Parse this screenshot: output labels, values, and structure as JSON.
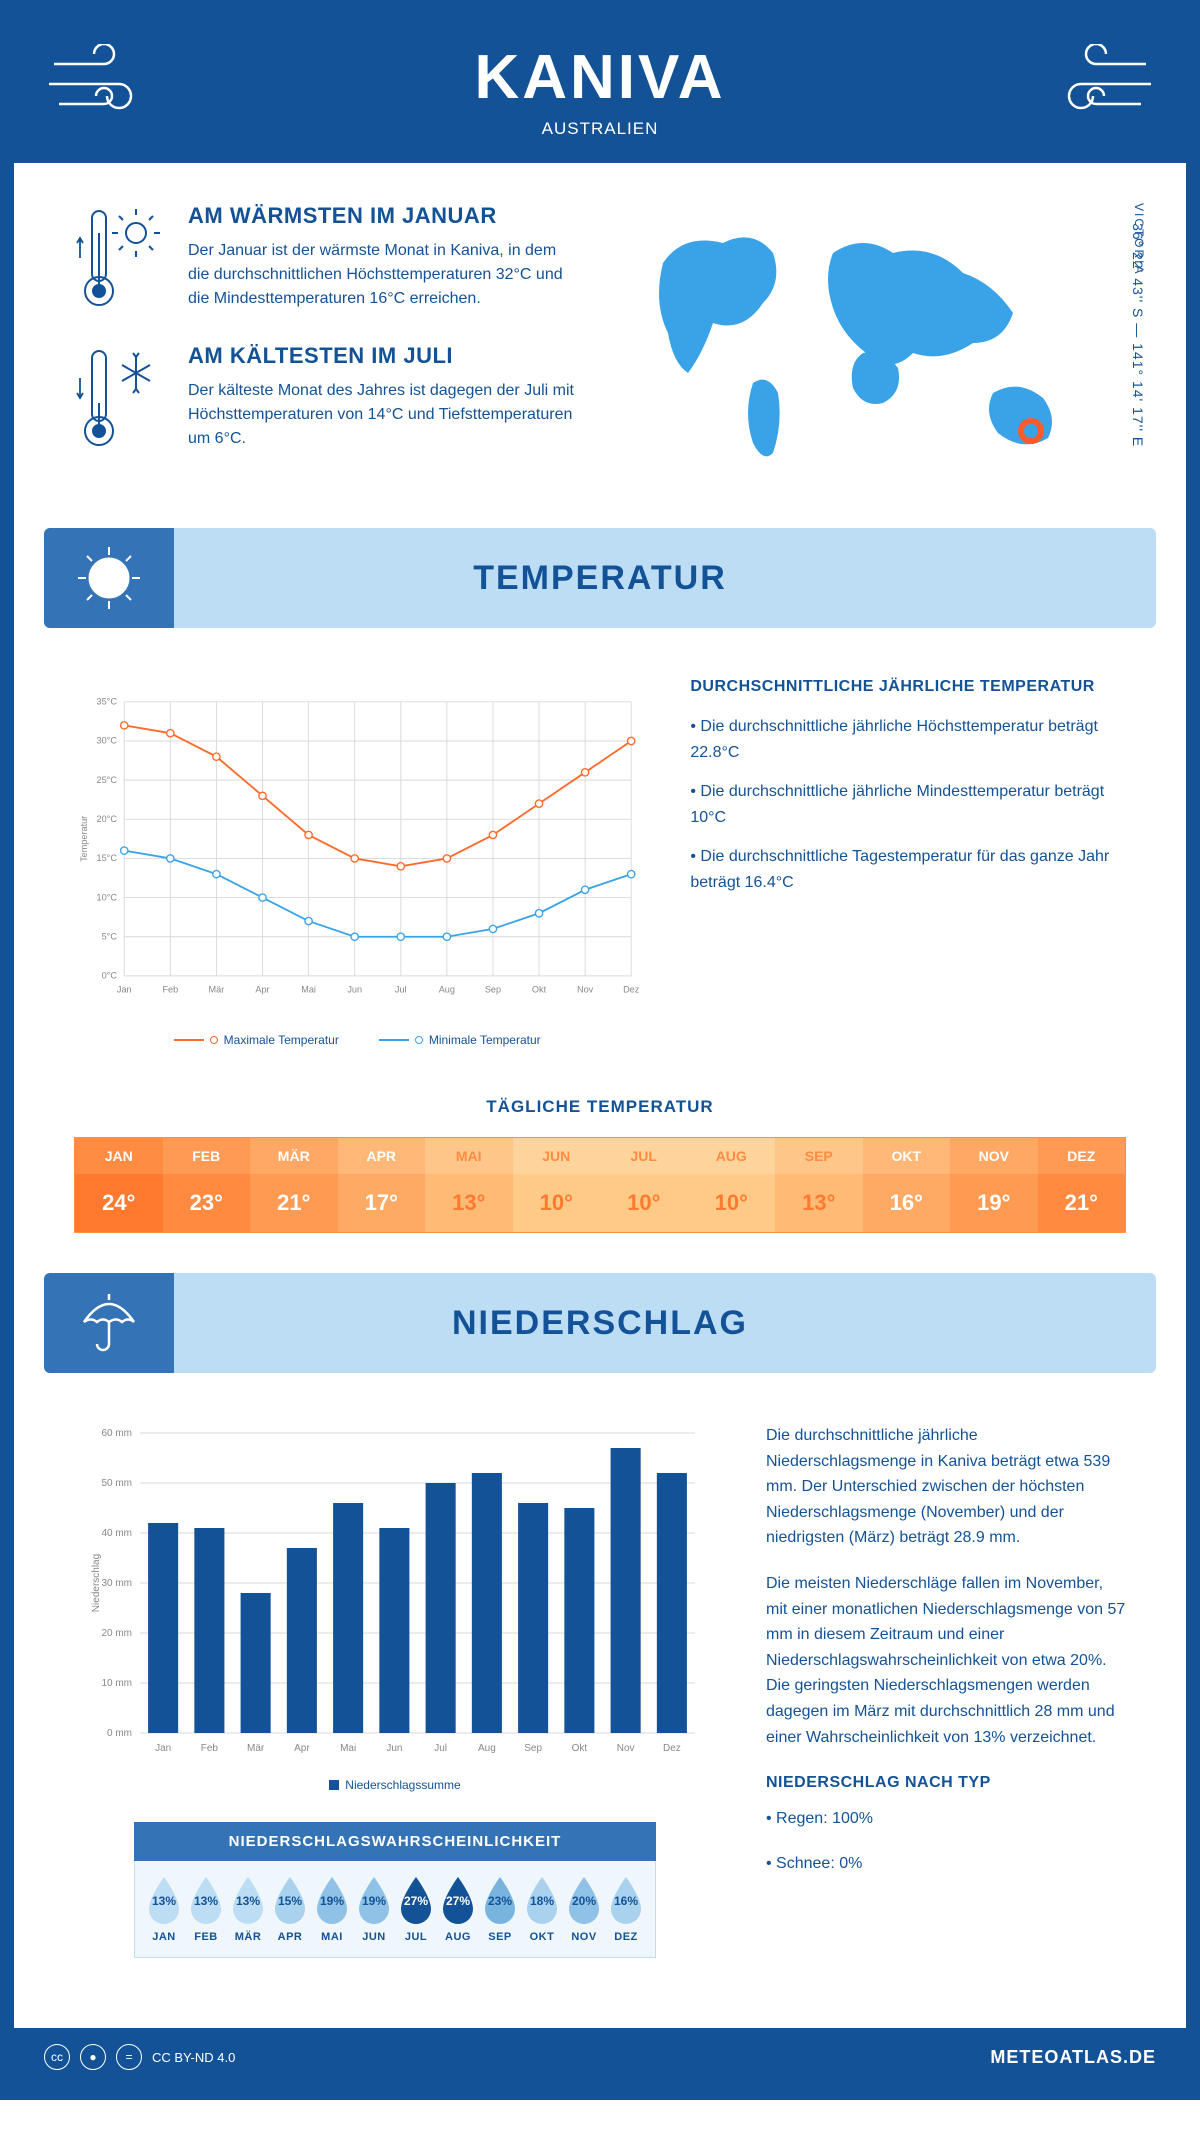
{
  "header": {
    "title": "KANIVA",
    "subtitle": "AUSTRALIEN"
  },
  "coords": "36° 22' 43'' S — 141° 14' 17'' E",
  "region": "VICTORIA",
  "fact1": {
    "title": "AM WÄRMSTEN IM JANUAR",
    "text": "Der Januar ist der wärmste Monat in Kaniva, in dem die durchschnittlichen Höchsttemperaturen 32°C und die Mindesttemperaturen 16°C erreichen."
  },
  "fact2": {
    "title": "AM KÄLTESTEN IM JULI",
    "text": "Der kälteste Monat des Jahres ist dagegen der Juli mit Höchsttemperaturen von 14°C und Tiefsttemperaturen um 6°C."
  },
  "section_temp": "TEMPERATUR",
  "section_precip": "NIEDERSCHLAG",
  "temp_chart": {
    "type": "line",
    "months": [
      "Jan",
      "Feb",
      "Mär",
      "Apr",
      "Mai",
      "Jun",
      "Jul",
      "Aug",
      "Sep",
      "Okt",
      "Nov",
      "Dez"
    ],
    "max_series": {
      "label": "Maximale Temperatur",
      "color": "#ff6a2b",
      "values": [
        32,
        31,
        28,
        23,
        18,
        15,
        14,
        15,
        18,
        22,
        26,
        30
      ]
    },
    "min_series": {
      "label": "Minimale Temperatur",
      "color": "#3aa3e8",
      "values": [
        16,
        15,
        13,
        10,
        7,
        5,
        5,
        5,
        6,
        8,
        11,
        13
      ]
    },
    "ylabel": "Temperatur",
    "ylim": [
      0,
      35
    ],
    "ytick_step": 5,
    "yunit": "°C",
    "grid_color": "#d9d9d9",
    "axis_color": "#999",
    "label_fontsize": 10,
    "tick_fontsize": 10,
    "marker": "circle",
    "marker_size": 4,
    "line_width": 2,
    "background": "#ffffff"
  },
  "temp_text": {
    "title": "DURCHSCHNITTLICHE JÄHRLICHE TEMPERATUR",
    "b1": "• Die durchschnittliche jährliche Höchsttemperatur beträgt 22.8°C",
    "b2": "• Die durchschnittliche jährliche Mindesttemperatur beträgt 10°C",
    "b3": "• Die durchschnittliche Tagestemperatur für das ganze Jahr beträgt 16.4°C"
  },
  "daily": {
    "title": "TÄGLICHE TEMPERATUR",
    "months": [
      "JAN",
      "FEB",
      "MÄR",
      "APR",
      "MAI",
      "JUN",
      "JUL",
      "AUG",
      "SEP",
      "OKT",
      "NOV",
      "DEZ"
    ],
    "values": [
      "24°",
      "23°",
      "21°",
      "17°",
      "13°",
      "10°",
      "10°",
      "10°",
      "13°",
      "16°",
      "19°",
      "21°"
    ],
    "head_colors": [
      "#ff8c42",
      "#ff9a54",
      "#ffa866",
      "#ffb878",
      "#ffc68a",
      "#ffd49c",
      "#ffd49c",
      "#ffd49c",
      "#ffc68a",
      "#ffb878",
      "#ffa866",
      "#ff9a54"
    ],
    "val_colors": [
      "#ff7a2e",
      "#ff8a40",
      "#ff9a52",
      "#ffaa64",
      "#ffba76",
      "#ffca88",
      "#ffca88",
      "#ffca88",
      "#ffba76",
      "#ffaa64",
      "#ff9a52",
      "#ff8a40"
    ],
    "head_text": [
      "#ffffff",
      "#ffffff",
      "#ffffff",
      "#ffffff",
      "#ff8c42",
      "#ff8c42",
      "#ff8c42",
      "#ff8c42",
      "#ff8c42",
      "#ffffff",
      "#ffffff",
      "#ffffff"
    ],
    "val_text": [
      "#ffffff",
      "#ffffff",
      "#ffffff",
      "#ffffff",
      "#ff7a2e",
      "#ff7a2e",
      "#ff7a2e",
      "#ff7a2e",
      "#ff7a2e",
      "#ffffff",
      "#ffffff",
      "#ffffff"
    ]
  },
  "precip_chart": {
    "type": "bar",
    "months": [
      "Jan",
      "Feb",
      "Mär",
      "Apr",
      "Mai",
      "Jun",
      "Jul",
      "Aug",
      "Sep",
      "Okt",
      "Nov",
      "Dez"
    ],
    "values": [
      42,
      41,
      28,
      37,
      46,
      41,
      50,
      52,
      46,
      45,
      57,
      52
    ],
    "bar_color": "#135296",
    "ylabel": "Niederschlag",
    "yunit": "mm",
    "ylim": [
      0,
      60
    ],
    "ytick_step": 10,
    "grid_color": "#d9d9d9",
    "axis_color": "#999",
    "label_fontsize": 10,
    "tick_fontsize": 10,
    "bar_width": 0.65,
    "legend_label": "Niederschlagssumme",
    "background": "#ffffff"
  },
  "precip_text": {
    "p1": "Die durchschnittliche jährliche Niederschlagsmenge in Kaniva beträgt etwa 539 mm. Der Unterschied zwischen der höchsten Niederschlagsmenge (November) und der niedrigsten (März) beträgt 28.9 mm.",
    "p2": "Die meisten Niederschläge fallen im November, mit einer monatlichen Niederschlagsmenge von 57 mm in diesem Zeitraum und einer Niederschlagswahrscheinlichkeit von etwa 20%. Die geringsten Niederschlagsmengen werden dagegen im März mit durchschnittlich 28 mm und einer Wahrscheinlichkeit von 13% verzeichnet.",
    "t2": "NIEDERSCHLAG NACH TYP",
    "b1": "• Regen: 100%",
    "b2": "• Schnee: 0%"
  },
  "prob": {
    "title": "NIEDERSCHLAGSWAHRSCHEINLICHKEIT",
    "months": [
      "JAN",
      "FEB",
      "MÄR",
      "APR",
      "MAI",
      "JUN",
      "JUL",
      "AUG",
      "SEP",
      "OKT",
      "NOV",
      "DEZ"
    ],
    "values": [
      "13%",
      "13%",
      "13%",
      "15%",
      "19%",
      "19%",
      "27%",
      "27%",
      "23%",
      "18%",
      "20%",
      "16%"
    ],
    "fills": [
      "#bcddf3",
      "#bcddf3",
      "#bcddf3",
      "#a9d2ee",
      "#8fc2e6",
      "#8fc2e6",
      "#135296",
      "#135296",
      "#79b4df",
      "#a9d2ee",
      "#8fc2e6",
      "#a9d2ee"
    ],
    "text_colors": [
      "#135296",
      "#135296",
      "#135296",
      "#135296",
      "#135296",
      "#135296",
      "#ffffff",
      "#ffffff",
      "#135296",
      "#135296",
      "#135296",
      "#135296"
    ]
  },
  "footer": {
    "license": "CC BY-ND 4.0",
    "site": "METEOATLAS.DE"
  }
}
